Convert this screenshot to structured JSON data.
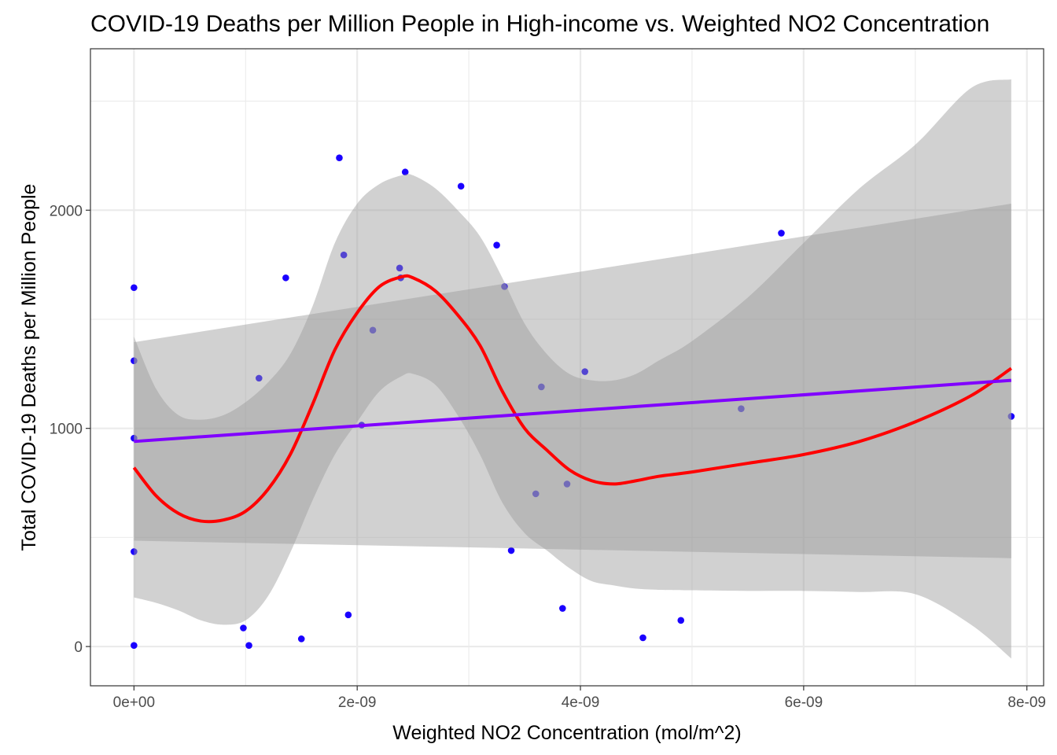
{
  "chart_data": {
    "type": "scatter",
    "title": "COVID-19 Deaths per Million People in High-income vs. Weighted NO2 Concentration",
    "xlabel": "Weighted NO2 Concentration (mol/m^2)",
    "ylabel": "Total COVID-19 Deaths per Million People",
    "xlim": [
      -3.9e-10,
      8.15e-09
    ],
    "ylim": [
      -180,
      2740
    ],
    "x_ticks": [
      0,
      2e-09,
      4e-09,
      6e-09,
      8e-09
    ],
    "x_tick_labels": [
      "0e+00",
      "2e-09",
      "4e-09",
      "6e-09",
      "8e-09"
    ],
    "y_ticks": [
      0,
      1000,
      2000
    ],
    "y_tick_labels": [
      "0",
      "1000",
      "2000"
    ],
    "grid": true,
    "legend": "none",
    "colors": {
      "points": "#1a00ff",
      "loess_line": "#ff0000",
      "linear_line": "#8000ff",
      "ribbon": "#999999",
      "grid": "#ebebeb",
      "panel_border": "#333333"
    },
    "series": [
      {
        "kind": "points",
        "x": [
          0,
          0,
          0,
          0,
          0,
          9.8e-10,
          1.03e-09,
          1.12e-09,
          1.36e-09,
          1.5e-09,
          1.84e-09,
          1.88e-09,
          1.92e-09,
          2.04e-09,
          2.14e-09,
          2.38e-09,
          2.39e-09,
          2.43e-09,
          2.93e-09,
          3.25e-09,
          3.32e-09,
          3.38e-09,
          3.6e-09,
          3.65e-09,
          3.84e-09,
          3.88e-09,
          4.04e-09,
          4.56e-09,
          4.9e-09,
          5.44e-09,
          5.8e-09,
          7.86e-09
        ],
        "y": [
          1645,
          1310,
          955,
          435,
          5,
          85,
          5,
          1230,
          1690,
          35,
          2240,
          1795,
          145,
          1015,
          1450,
          1735,
          1690,
          2175,
          2110,
          1840,
          1650,
          440,
          700,
          1190,
          175,
          745,
          1260,
          40,
          120,
          1090,
          1895,
          1055
        ]
      },
      {
        "kind": "loess_fit",
        "x": [
          0,
          2e-10,
          4e-10,
          6e-10,
          8e-10,
          1e-09,
          1.2e-09,
          1.4e-09,
          1.6e-09,
          1.8e-09,
          2e-09,
          2.2e-09,
          2.4e-09,
          2.5e-09,
          2.7e-09,
          2.9e-09,
          3.1e-09,
          3.3e-09,
          3.5e-09,
          3.7e-09,
          3.9e-09,
          4.1e-09,
          4.3e-09,
          4.5e-09,
          4.7e-09,
          5e-09,
          5.5e-09,
          6e-09,
          6.5e-09,
          7e-09,
          7.5e-09,
          7.86e-09
        ],
        "y": [
          820,
          690,
          610,
          575,
          580,
          620,
          720,
          880,
          1110,
          1360,
          1530,
          1650,
          1695,
          1690,
          1630,
          1520,
          1380,
          1170,
          1000,
          900,
          810,
          760,
          745,
          760,
          780,
          800,
          840,
          880,
          940,
          1030,
          1150,
          1275
        ],
        "ci_lower": [
          225,
          200,
          165,
          120,
          100,
          120,
          230,
          430,
          670,
          880,
          1030,
          1170,
          1240,
          1250,
          1200,
          1060,
          880,
          660,
          520,
          440,
          360,
          300,
          280,
          265,
          260,
          258,
          255,
          255,
          250,
          240,
          100,
          -55
        ],
        "ci_upper": [
          1420,
          1180,
          1060,
          1040,
          1060,
          1120,
          1210,
          1340,
          1560,
          1850,
          2030,
          2120,
          2160,
          2160,
          2100,
          2000,
          1880,
          1690,
          1480,
          1340,
          1250,
          1220,
          1220,
          1250,
          1310,
          1400,
          1600,
          1850,
          2100,
          2300,
          2560,
          2600
        ]
      },
      {
        "kind": "linear_fit",
        "x": [
          0,
          7.86e-09
        ],
        "y": [
          940,
          1220
        ],
        "ci_lower": [
          485,
          405
        ],
        "ci_upper": [
          1395,
          2030
        ]
      }
    ]
  }
}
